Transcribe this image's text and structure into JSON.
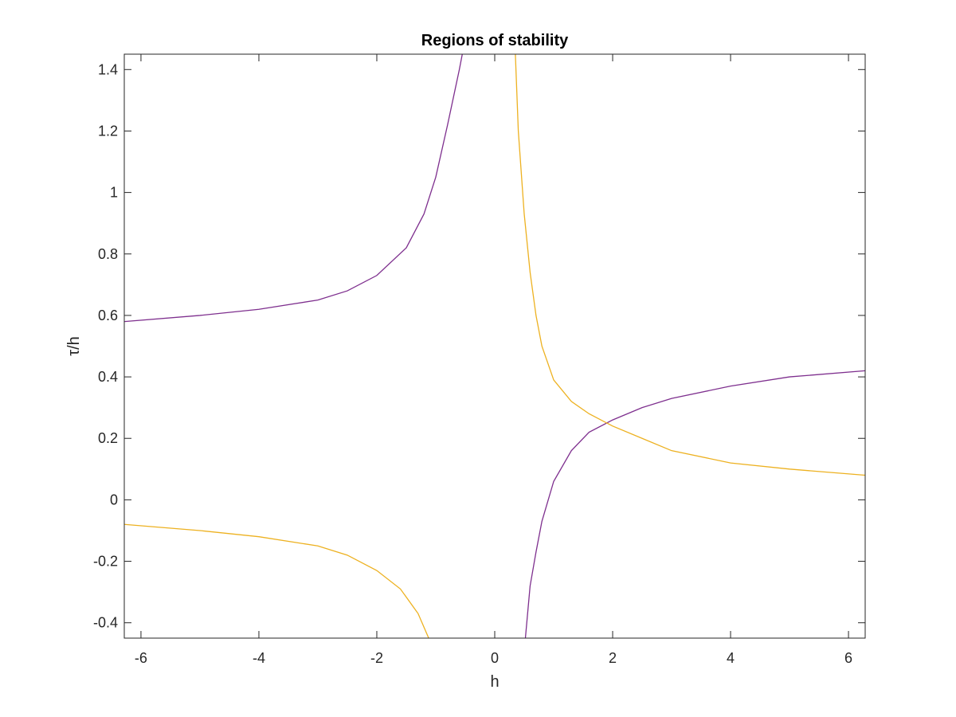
{
  "chart_data": {
    "type": "line",
    "title": "Regions of stability",
    "xlabel": "h",
    "ylabel": "τ/h",
    "xlim": [
      -6.283,
      6.283
    ],
    "ylim": [
      -0.45,
      1.45
    ],
    "xticks": [
      -6,
      -4,
      -2,
      0,
      2,
      4,
      6
    ],
    "xtick_labels": [
      "-6",
      "-4",
      "-2",
      "0",
      "2",
      "4",
      "6"
    ],
    "yticks": [
      -0.4,
      -0.2,
      0,
      0.2,
      0.4,
      0.6,
      0.8,
      1,
      1.2,
      1.4
    ],
    "ytick_labels": [
      "-0.4",
      "-0.2",
      "0",
      "0.2",
      "0.4",
      "0.6",
      "0.8",
      "1",
      "1.2",
      "1.4"
    ],
    "grid": false,
    "series": [
      {
        "color": "#7E2F8E",
        "segments": [
          {
            "x": [
              -6.28,
              -5.0,
              -4.0,
              -3.0,
              -2.5,
              -2.0,
              -1.5,
              -1.2,
              -1.0,
              -0.8,
              -0.6,
              -0.55
            ],
            "y": [
              0.58,
              0.6,
              0.62,
              0.65,
              0.68,
              0.73,
              0.82,
              0.93,
              1.05,
              1.22,
              1.4,
              1.45
            ]
          },
          {
            "x": [
              0.52,
              0.6,
              0.7,
              0.8,
              1.0,
              1.3,
              1.6,
              2.0,
              2.5,
              3.0,
              4.0,
              5.0,
              6.28
            ],
            "y": [
              -0.45,
              -0.28,
              -0.17,
              -0.07,
              0.06,
              0.16,
              0.22,
              0.26,
              0.3,
              0.33,
              0.37,
              0.4,
              0.42
            ]
          }
        ]
      },
      {
        "color": "#EDB120",
        "segments": [
          {
            "x": [
              0.35,
              0.4,
              0.5,
              0.6,
              0.7,
              0.8,
              1.0,
              1.3,
              1.6,
              2.0,
              2.5,
              3.0,
              4.0,
              5.0,
              6.28
            ],
            "y": [
              1.45,
              1.2,
              0.93,
              0.74,
              0.6,
              0.5,
              0.39,
              0.32,
              0.28,
              0.24,
              0.2,
              0.16,
              0.12,
              0.1,
              0.08
            ]
          },
          {
            "x": [
              -6.28,
              -5.0,
              -4.0,
              -3.0,
              -2.5,
              -2.0,
              -1.6,
              -1.3,
              -1.12
            ],
            "y": [
              -0.08,
              -0.1,
              -0.12,
              -0.15,
              -0.18,
              -0.23,
              -0.29,
              -0.37,
              -0.45
            ]
          }
        ]
      }
    ]
  }
}
